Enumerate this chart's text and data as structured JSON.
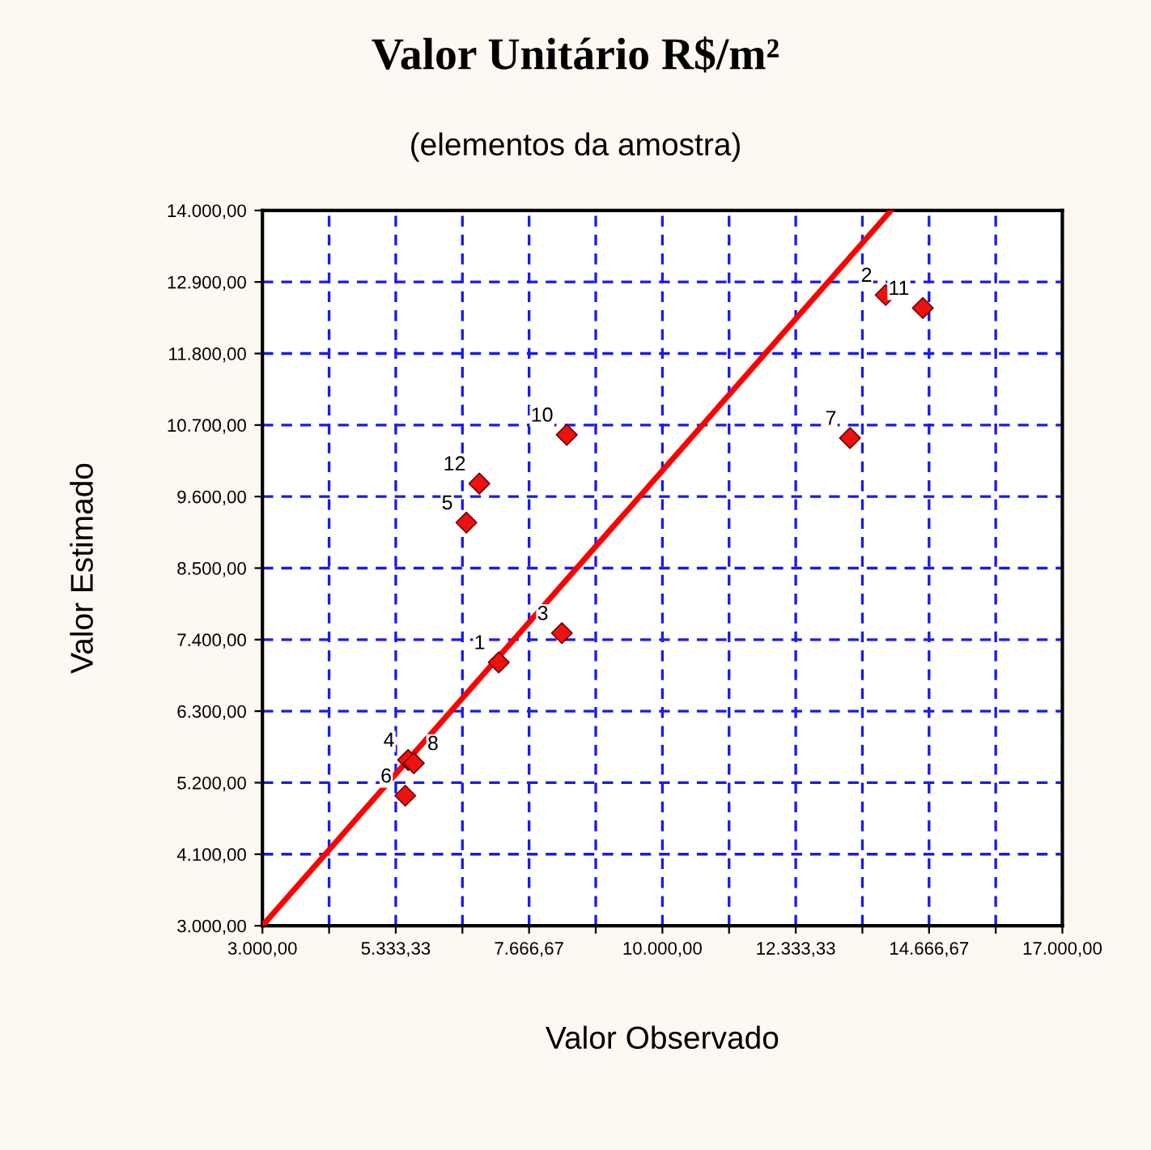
{
  "chart_data": {
    "type": "scatter",
    "title": "Valor Unitário R$/m²",
    "subtitle": "(elementos da amostra)",
    "xlabel": "Valor Observado",
    "ylabel": "Valor Estimado",
    "series": [
      {
        "color": "#ee1111",
        "marker": "diamond",
        "x": [
          7136,
          13907,
          8241,
          5550,
          6569,
          5500,
          13283,
          5650,
          8326,
          14558,
          6796
        ],
        "values": [
          7050,
          12700,
          7500,
          5550,
          9200,
          5000,
          10500,
          5500,
          10550,
          12500,
          9800
        ]
      },
      {
        "type": "line",
        "color": "#ff0000",
        "line_style": "solid",
        "marker": "none",
        "x": [
          3000,
          14000
        ],
        "values": [
          3000,
          14000
        ]
      }
    ],
    "annotations": [
      {
        "text": "1",
        "x": 7136,
        "y": 7050
      },
      {
        "text": "2",
        "x": 13907,
        "y": 12700
      },
      {
        "text": "3",
        "x": 8241,
        "y": 7500
      },
      {
        "text": "4",
        "x": 5550,
        "y": 5550
      },
      {
        "text": "5",
        "x": 6569,
        "y": 9200
      },
      {
        "text": "6",
        "x": 5500,
        "y": 5000
      },
      {
        "text": "7",
        "x": 13283,
        "y": 10500
      },
      {
        "text": "8",
        "x": 5650,
        "y": 5500
      },
      {
        "text": "10",
        "x": 8326,
        "y": 10550
      },
      {
        "text": "11",
        "x": 14558,
        "y": 12500
      },
      {
        "text": "12",
        "x": 6796,
        "y": 9800
      }
    ],
    "xlim": [
      3000,
      17000
    ],
    "ylim": [
      3000,
      14000
    ],
    "xticks": [
      {
        "value": 3000,
        "label": "3.000,00"
      },
      {
        "value": 4166.67,
        "label": null
      },
      {
        "value": 5333.33,
        "label": "5.333,33"
      },
      {
        "value": 6500,
        "label": null
      },
      {
        "value": 7666.67,
        "label": "7.666,67"
      },
      {
        "value": 8833.33,
        "label": null
      },
      {
        "value": 10000,
        "label": "10.000,00"
      },
      {
        "value": 11166.67,
        "label": null
      },
      {
        "value": 12333.33,
        "label": "12.333,33"
      },
      {
        "value": 13500,
        "label": null
      },
      {
        "value": 14666.67,
        "label": "14.666,67"
      },
      {
        "value": 15833.33,
        "label": null
      },
      {
        "value": 17000,
        "label": "17.000,00"
      }
    ],
    "yticks": [
      {
        "value": 3000,
        "label": "3.000,00"
      },
      {
        "value": 4100,
        "label": "4.100,00"
      },
      {
        "value": 5200,
        "label": "5.200,00"
      },
      {
        "value": 6300,
        "label": "6.300,00"
      },
      {
        "value": 7400,
        "label": "7.400,00"
      },
      {
        "value": 8500,
        "label": "8.500,00"
      },
      {
        "value": 9600,
        "label": "9.600,00"
      },
      {
        "value": 10700,
        "label": "10.700,00"
      },
      {
        "value": 11800,
        "label": "11.800,00"
      },
      {
        "value": 12900,
        "label": "12.900,00"
      },
      {
        "value": 14000,
        "label": "14.000,00"
      }
    ],
    "grid": true,
    "legend": false
  }
}
